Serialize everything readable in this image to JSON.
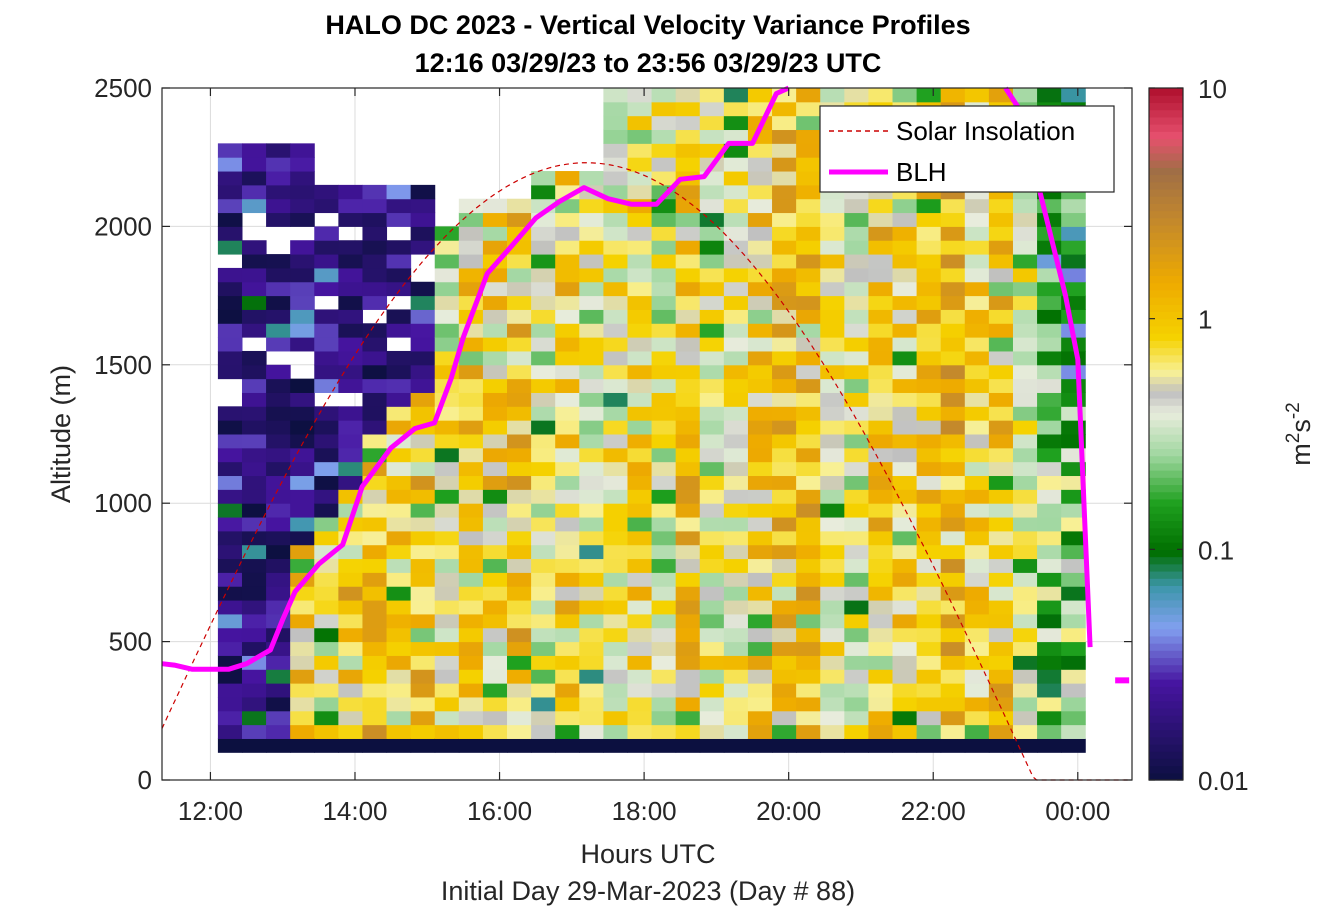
{
  "chart_data": {
    "type": "heatmap",
    "title_line1": "HALO DC 2023 - Vertical Velocity Variance Profiles",
    "title_line2": "12:16 03/29/23 to 23:56 03/29/23  UTC",
    "xlabel": "Hours UTC",
    "xlabel2": "Initial Day 29-Mar-2023 (Day # 88)",
    "ylabel": "Altitude (m)",
    "colorbar_label_base": "m",
    "colorbar_label_exp1": "2",
    "colorbar_label_mid": "s",
    "colorbar_label_exp2": "-2",
    "x_unit": "hours UTC (values past 24 roll over to the next day)",
    "xlim": [
      11.33,
      24.75
    ],
    "ylim": [
      0,
      2500
    ],
    "x_ticks": [
      12,
      14,
      16,
      18,
      20,
      22,
      24
    ],
    "x_tick_labels": [
      "12:00",
      "14:00",
      "16:00",
      "18:00",
      "20:00",
      "22:00",
      "00:00"
    ],
    "y_ticks": [
      0,
      500,
      1000,
      1500,
      2000,
      2500
    ],
    "y_tick_labels": [
      "0",
      "500",
      "1000",
      "1500",
      "2000",
      "2500"
    ],
    "colorbar_scale": "log",
    "colorbar_range": [
      0.01,
      10
    ],
    "colorbar_ticks": [
      0.01,
      0.1,
      1,
      10
    ],
    "colorbar_tick_labels": [
      "0.01",
      "0.1",
      "1",
      "10"
    ],
    "colors": {
      "blh": "#ff00ff",
      "solar": "#cc0000"
    },
    "heatmap_summary": {
      "time_range": "12:16 to 23:56 UTC",
      "altitude_range_m": [
        100,
        2500
      ],
      "bin_interval_min": 20,
      "range_gate_m": 50,
      "pattern": "variance near 0.01 before 13:00 and above the BLH until 15:00; 0.2-3 m2s-2 within the boundary layer 15:00-23:00; decreasing after 23:30"
    },
    "legend": {
      "entries": [
        "Solar Insolation",
        "BLH"
      ],
      "placement": "top-right"
    },
    "blh_series": {
      "name": "BLH",
      "x": [
        11.33,
        11.5,
        11.75,
        12.0,
        12.25,
        12.5,
        12.83,
        13.0,
        13.17,
        13.5,
        13.83,
        14.1,
        14.5,
        14.83,
        15.1,
        15.33,
        15.5,
        15.83,
        16.17,
        16.5,
        16.83,
        17.17,
        17.5,
        17.83,
        18.17,
        18.5,
        18.83,
        19.17,
        19.5,
        19.83,
        20.0
      ],
      "y": [
        420,
        415,
        400,
        400,
        400,
        420,
        470,
        580,
        680,
        780,
        850,
        1060,
        1200,
        1270,
        1290,
        1450,
        1600,
        1830,
        1930,
        2030,
        2090,
        2140,
        2100,
        2080,
        2080,
        2170,
        2180,
        2300,
        2300,
        2480,
        2500
      ]
    },
    "blh_series_late": {
      "x": [
        23.0,
        23.2,
        23.5,
        23.83,
        24.0,
        24.17
      ],
      "y": [
        2500,
        2420,
        2100,
        1750,
        1520,
        480
      ]
    },
    "blh_late_point": {
      "x": 24.6,
      "y": 360
    },
    "solar_series": {
      "name": "Solar Insolation",
      "peak_x": 17.2,
      "half_width_h": 6.2,
      "max_y": 2230
    }
  }
}
